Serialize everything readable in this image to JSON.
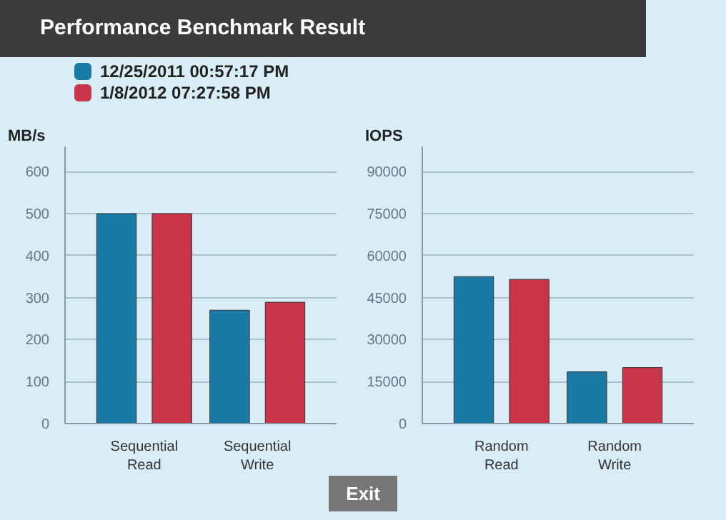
{
  "chart_data": [
    {
      "type": "bar",
      "title": "Performance Benchmark Result",
      "ylabel": "MB/s",
      "categories": [
        "Sequential\nRead",
        "Sequential\nWrite"
      ],
      "series": [
        {
          "name": "12/25/2011  00:57:17 PM",
          "color": "#1a7aa6",
          "values": [
            500,
            270
          ]
        },
        {
          "name": "1/8/2012  07:27:58 PM",
          "color": "#c8344a",
          "values": [
            500,
            289
          ]
        }
      ],
      "ylim": [
        0,
        660
      ],
      "yticks": [
        0,
        100,
        200,
        300,
        400,
        500,
        600
      ],
      "grid": "y",
      "legend": "top left"
    },
    {
      "type": "bar",
      "ylabel": "IOPS",
      "categories": [
        "Random\nRead",
        "Random\nWrite"
      ],
      "series": [
        {
          "color": "#1a7aa6",
          "values": [
            52500,
            18500
          ]
        },
        {
          "color": "#c8344a",
          "values": [
            51500,
            20000
          ]
        }
      ],
      "ylim": [
        0,
        99000
      ],
      "yticks": [
        0,
        15000,
        30000,
        45000,
        60000,
        75000,
        90000
      ],
      "grid": "y",
      "annotations": [
        "Exit"
      ]
    }
  ]
}
